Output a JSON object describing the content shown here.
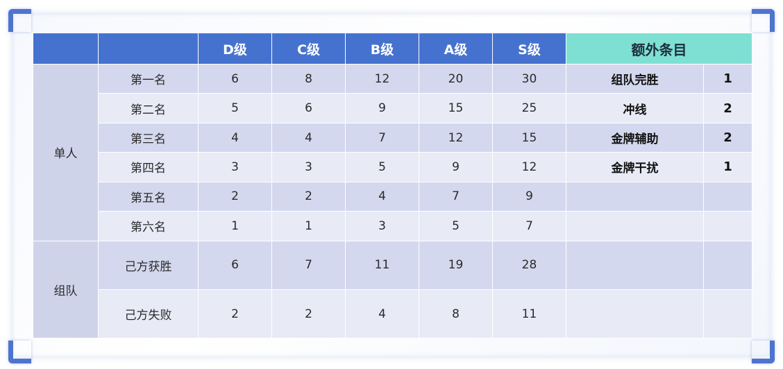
{
  "header": {
    "grades": [
      "D级",
      "C级",
      "B级",
      "A级",
      "S级"
    ],
    "extra_label": "额外条目"
  },
  "groups": [
    {
      "label": "单人",
      "rows": [
        {
          "rank": "第一名",
          "values": [
            "6",
            "8",
            "12",
            "20",
            "30"
          ]
        },
        {
          "rank": "第二名",
          "values": [
            "5",
            "6",
            "9",
            "15",
            "25"
          ]
        },
        {
          "rank": "第三名",
          "values": [
            "4",
            "4",
            "7",
            "12",
            "15"
          ]
        },
        {
          "rank": "第四名",
          "values": [
            "3",
            "3",
            "5",
            "9",
            "12"
          ]
        },
        {
          "rank": "第五名",
          "values": [
            "2",
            "2",
            "4",
            "7",
            "9"
          ]
        },
        {
          "rank": "第六名",
          "values": [
            "1",
            "1",
            "3",
            "5",
            "7"
          ]
        }
      ]
    },
    {
      "label": "组队",
      "rows": [
        {
          "rank": "己方获胜",
          "values": [
            "6",
            "7",
            "11",
            "19",
            "28"
          ]
        },
        {
          "rank": "己方失败",
          "values": [
            "2",
            "2",
            "4",
            "8",
            "11"
          ]
        }
      ]
    }
  ],
  "bonus": [
    {
      "name": "组队完胜",
      "value": "1"
    },
    {
      "name": "冲线",
      "value": "2"
    },
    {
      "name": "金牌辅助",
      "value": "2"
    },
    {
      "name": "金牌干扰",
      "value": "1"
    },
    {
      "name": "",
      "value": ""
    },
    {
      "name": "",
      "value": ""
    },
    {
      "name": "",
      "value": ""
    },
    {
      "name": "",
      "value": ""
    }
  ],
  "colors": {
    "header_blue": "#4672cf",
    "header_teal": "#7ee0d3",
    "row_dark": "#d4d8ee",
    "row_light": "#e8eaf6",
    "corner_accent": "#4f74cf"
  }
}
